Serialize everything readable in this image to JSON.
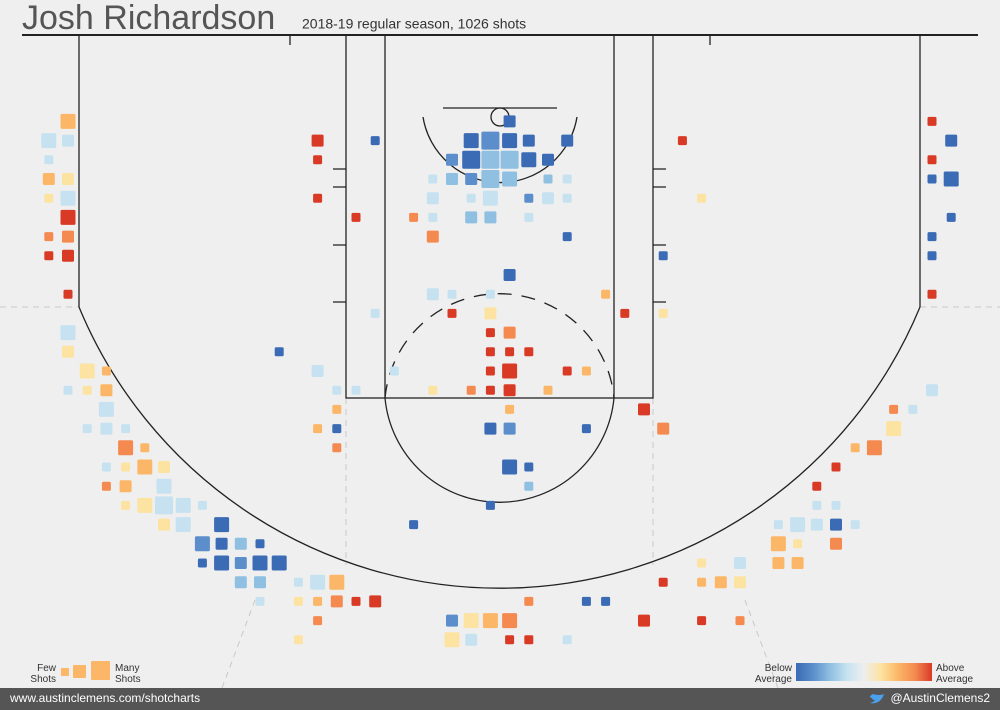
{
  "chart_data": {
    "type": "shot-chart",
    "title": "Josh Richardson",
    "subtitle": "2018-19 regular season, 1026 shots",
    "colors": [
      "#3a6bb4",
      "#5b8ecb",
      "#8fbfe1",
      "#c6e2f0",
      "#eeeeee",
      "#fde3a1",
      "#fbb767",
      "#f48a50",
      "#d93a26"
    ],
    "legend": {
      "few": "Few Shots",
      "many": "Many Shots",
      "below": "Below Average",
      "above": "Above Average"
    },
    "footer": {
      "site": "www.austinclemens.com/shotcharts",
      "handle": "@AustinClemens2"
    },
    "shots": [
      {
        "x": -22.5,
        "y": 4.5,
        "n": 3,
        "v": 2
      },
      {
        "x": -23.5,
        "y": 5.5,
        "n": 3,
        "v": -1
      },
      {
        "x": -22.5,
        "y": 5.5,
        "n": 2,
        "v": -1
      },
      {
        "x": -23.5,
        "y": 6.5,
        "n": 1,
        "v": -1
      },
      {
        "x": -23.5,
        "y": 7.5,
        "n": 2,
        "v": 2
      },
      {
        "x": -22.5,
        "y": 7.5,
        "n": 2,
        "v": 1
      },
      {
        "x": -23.5,
        "y": 8.5,
        "n": 1,
        "v": 1
      },
      {
        "x": -22.5,
        "y": 8.5,
        "n": 3,
        "v": -1
      },
      {
        "x": -22.5,
        "y": 9.5,
        "n": 3,
        "v": 4
      },
      {
        "x": -23.5,
        "y": 10.5,
        "n": 1,
        "v": 3
      },
      {
        "x": -22.5,
        "y": 10.5,
        "n": 2,
        "v": 3
      },
      {
        "x": -23.5,
        "y": 11.5,
        "n": 1,
        "v": 4
      },
      {
        "x": -22.5,
        "y": 11.5,
        "n": 2,
        "v": 4
      },
      {
        "x": -22.5,
        "y": 13.5,
        "n": 1,
        "v": 4
      },
      {
        "x": -9.5,
        "y": 5.5,
        "n": 2,
        "v": 4
      },
      {
        "x": -6.5,
        "y": 5.5,
        "n": 1,
        "v": -4
      },
      {
        "x": -9.5,
        "y": 6.5,
        "n": 1,
        "v": 4
      },
      {
        "x": -9.5,
        "y": 8.5,
        "n": 1,
        "v": 4
      },
      {
        "x": -7.5,
        "y": 9.5,
        "n": 1,
        "v": 4
      },
      {
        "x": -4.5,
        "y": 9.5,
        "n": 1,
        "v": 3
      },
      {
        "x": -3.5,
        "y": 9.5,
        "n": 1,
        "v": -1
      },
      {
        "x": -3.5,
        "y": 10.5,
        "n": 2,
        "v": 3
      },
      {
        "x": 0.5,
        "y": 4.5,
        "n": 2,
        "v": -4
      },
      {
        "x": -1.5,
        "y": 5.5,
        "n": 3,
        "v": -4
      },
      {
        "x": -0.5,
        "y": 5.5,
        "n": 4,
        "v": -3
      },
      {
        "x": 0.5,
        "y": 5.5,
        "n": 3,
        "v": -4
      },
      {
        "x": 1.5,
        "y": 5.5,
        "n": 2,
        "v": -4
      },
      {
        "x": 3.5,
        "y": 5.5,
        "n": 2,
        "v": -4
      },
      {
        "x": -2.5,
        "y": 6.5,
        "n": 2,
        "v": -3
      },
      {
        "x": -1.5,
        "y": 6.5,
        "n": 4,
        "v": -4
      },
      {
        "x": -0.5,
        "y": 6.5,
        "n": 4,
        "v": -2
      },
      {
        "x": 0.5,
        "y": 6.5,
        "n": 4,
        "v": -2
      },
      {
        "x": 1.5,
        "y": 6.5,
        "n": 3,
        "v": -4
      },
      {
        "x": 2.5,
        "y": 6.5,
        "n": 2,
        "v": -4
      },
      {
        "x": -3.5,
        "y": 7.5,
        "n": 1,
        "v": -1
      },
      {
        "x": -2.5,
        "y": 7.5,
        "n": 2,
        "v": -2
      },
      {
        "x": -1.5,
        "y": 7.5,
        "n": 2,
        "v": -3
      },
      {
        "x": -0.5,
        "y": 7.5,
        "n": 4,
        "v": -2
      },
      {
        "x": 0.5,
        "y": 7.5,
        "n": 3,
        "v": -2
      },
      {
        "x": 2.5,
        "y": 7.5,
        "n": 1,
        "v": -2
      },
      {
        "x": 3.5,
        "y": 7.5,
        "n": 1,
        "v": -1
      },
      {
        "x": -3.5,
        "y": 8.5,
        "n": 2,
        "v": -1
      },
      {
        "x": -1.5,
        "y": 8.5,
        "n": 1,
        "v": -1
      },
      {
        "x": -0.5,
        "y": 8.5,
        "n": 3,
        "v": -1
      },
      {
        "x": 1.5,
        "y": 8.5,
        "n": 1,
        "v": -3
      },
      {
        "x": 2.5,
        "y": 8.5,
        "n": 2,
        "v": -1
      },
      {
        "x": 3.5,
        "y": 8.5,
        "n": 1,
        "v": -1
      },
      {
        "x": -1.5,
        "y": 9.5,
        "n": 2,
        "v": -2
      },
      {
        "x": -0.5,
        "y": 9.5,
        "n": 2,
        "v": -2
      },
      {
        "x": 1.5,
        "y": 9.5,
        "n": 1,
        "v": -1
      },
      {
        "x": 3.5,
        "y": 10.5,
        "n": 1,
        "v": -4
      },
      {
        "x": 9.5,
        "y": 5.5,
        "n": 1,
        "v": 4
      },
      {
        "x": 10.5,
        "y": 8.5,
        "n": 1,
        "v": 1
      },
      {
        "x": 8.5,
        "y": 11.5,
        "n": 1,
        "v": -4
      },
      {
        "x": 22.5,
        "y": 4.5,
        "n": 1,
        "v": 4
      },
      {
        "x": 23.5,
        "y": 5.5,
        "n": 2,
        "v": -4
      },
      {
        "x": 22.5,
        "y": 6.5,
        "n": 1,
        "v": 4
      },
      {
        "x": 22.5,
        "y": 7.5,
        "n": 1,
        "v": -4
      },
      {
        "x": 23.5,
        "y": 7.5,
        "n": 3,
        "v": -4
      },
      {
        "x": 23.5,
        "y": 9.5,
        "n": 1,
        "v": -4
      },
      {
        "x": 22.5,
        "y": 10.5,
        "n": 1,
        "v": -4
      },
      {
        "x": 22.5,
        "y": 11.5,
        "n": 1,
        "v": -4
      },
      {
        "x": 22.5,
        "y": 13.5,
        "n": 1,
        "v": 4
      },
      {
        "x": 0.5,
        "y": 12.5,
        "n": 2,
        "v": -4
      },
      {
        "x": -3.5,
        "y": 13.5,
        "n": 2,
        "v": -1
      },
      {
        "x": -2.5,
        "y": 13.5,
        "n": 1,
        "v": -1
      },
      {
        "x": -0.5,
        "y": 13.5,
        "n": 1,
        "v": -1
      },
      {
        "x": 5.5,
        "y": 13.5,
        "n": 1,
        "v": 2
      },
      {
        "x": -6.5,
        "y": 14.5,
        "n": 1,
        "v": -1
      },
      {
        "x": -2.5,
        "y": 14.5,
        "n": 1,
        "v": 4
      },
      {
        "x": -0.5,
        "y": 14.5,
        "n": 2,
        "v": 1
      },
      {
        "x": 6.5,
        "y": 14.5,
        "n": 1,
        "v": 4
      },
      {
        "x": 8.5,
        "y": 14.5,
        "n": 1,
        "v": 1
      },
      {
        "x": -0.5,
        "y": 15.5,
        "n": 1,
        "v": 4
      },
      {
        "x": 0.5,
        "y": 15.5,
        "n": 2,
        "v": 3
      },
      {
        "x": -0.5,
        "y": 16.5,
        "n": 1,
        "v": 4
      },
      {
        "x": 0.5,
        "y": 16.5,
        "n": 1,
        "v": 4
      },
      {
        "x": 1.5,
        "y": 16.5,
        "n": 1,
        "v": 4
      },
      {
        "x": -11.5,
        "y": 16.5,
        "n": 1,
        "v": -4
      },
      {
        "x": -9.5,
        "y": 17.5,
        "n": 2,
        "v": -1
      },
      {
        "x": -5.5,
        "y": 17.5,
        "n": 1,
        "v": -1
      },
      {
        "x": -0.5,
        "y": 17.5,
        "n": 1,
        "v": 4
      },
      {
        "x": 0.5,
        "y": 17.5,
        "n": 3,
        "v": 4
      },
      {
        "x": 3.5,
        "y": 17.5,
        "n": 1,
        "v": 4
      },
      {
        "x": 4.5,
        "y": 17.5,
        "n": 1,
        "v": 2
      },
      {
        "x": -8.5,
        "y": 18.5,
        "n": 1,
        "v": -1
      },
      {
        "x": -7.5,
        "y": 18.5,
        "n": 1,
        "v": -1
      },
      {
        "x": -3.5,
        "y": 18.5,
        "n": 1,
        "v": 1
      },
      {
        "x": -1.5,
        "y": 18.5,
        "n": 1,
        "v": 3
      },
      {
        "x": -0.5,
        "y": 18.5,
        "n": 1,
        "v": 4
      },
      {
        "x": 0.5,
        "y": 18.5,
        "n": 2,
        "v": 4
      },
      {
        "x": 2.5,
        "y": 18.5,
        "n": 1,
        "v": 2
      },
      {
        "x": -8.5,
        "y": 19.5,
        "n": 1,
        "v": 2
      },
      {
        "x": 0.5,
        "y": 19.5,
        "n": 1,
        "v": 2
      },
      {
        "x": 7.5,
        "y": 19.5,
        "n": 2,
        "v": 4
      },
      {
        "x": -9.5,
        "y": 20.5,
        "n": 1,
        "v": 2
      },
      {
        "x": -8.5,
        "y": 20.5,
        "n": 1,
        "v": -4
      },
      {
        "x": -0.5,
        "y": 20.5,
        "n": 2,
        "v": -4
      },
      {
        "x": 0.5,
        "y": 20.5,
        "n": 2,
        "v": -3
      },
      {
        "x": 4.5,
        "y": 20.5,
        "n": 1,
        "v": -4
      },
      {
        "x": 8.5,
        "y": 20.5,
        "n": 2,
        "v": 3
      },
      {
        "x": -8.5,
        "y": 21.5,
        "n": 1,
        "v": 3
      },
      {
        "x": 0.5,
        "y": 22.5,
        "n": 3,
        "v": -4
      },
      {
        "x": 1.5,
        "y": 22.5,
        "n": 1,
        "v": -4
      },
      {
        "x": 1.5,
        "y": 23.5,
        "n": 1,
        "v": -2
      },
      {
        "x": -0.5,
        "y": 24.5,
        "n": 1,
        "v": -4
      },
      {
        "x": -4.5,
        "y": 25.5,
        "n": 1,
        "v": -4
      },
      {
        "x": -22.5,
        "y": 15.5,
        "n": 3,
        "v": -1
      },
      {
        "x": -22.5,
        "y": 16.5,
        "n": 2,
        "v": 1
      },
      {
        "x": -21.5,
        "y": 17.5,
        "n": 3,
        "v": 1
      },
      {
        "x": -20.5,
        "y": 17.5,
        "n": 1,
        "v": 2
      },
      {
        "x": -22.5,
        "y": 18.5,
        "n": 1,
        "v": -1
      },
      {
        "x": -21.5,
        "y": 18.5,
        "n": 1,
        "v": 1
      },
      {
        "x": -20.5,
        "y": 18.5,
        "n": 2,
        "v": 2
      },
      {
        "x": -20.5,
        "y": 19.5,
        "n": 3,
        "v": -1
      },
      {
        "x": -21.5,
        "y": 20.5,
        "n": 1,
        "v": -1
      },
      {
        "x": -20.5,
        "y": 20.5,
        "n": 2,
        "v": -1
      },
      {
        "x": -19.5,
        "y": 20.5,
        "n": 1,
        "v": -1
      },
      {
        "x": -19.5,
        "y": 21.5,
        "n": 3,
        "v": 3
      },
      {
        "x": -18.5,
        "y": 21.5,
        "n": 1,
        "v": 2
      },
      {
        "x": -20.5,
        "y": 22.5,
        "n": 1,
        "v": -1
      },
      {
        "x": -19.5,
        "y": 22.5,
        "n": 1,
        "v": 1
      },
      {
        "x": -18.5,
        "y": 22.5,
        "n": 3,
        "v": 2
      },
      {
        "x": -17.5,
        "y": 22.5,
        "n": 2,
        "v": 1
      },
      {
        "x": -20.5,
        "y": 23.5,
        "n": 1,
        "v": 3
      },
      {
        "x": -19.5,
        "y": 23.5,
        "n": 2,
        "v": 2
      },
      {
        "x": -17.5,
        "y": 23.5,
        "n": 3,
        "v": -1
      },
      {
        "x": -19.5,
        "y": 24.5,
        "n": 1,
        "v": 1
      },
      {
        "x": -18.5,
        "y": 24.5,
        "n": 3,
        "v": 1
      },
      {
        "x": -17.5,
        "y": 24.5,
        "n": 4,
        "v": -1
      },
      {
        "x": -16.5,
        "y": 24.5,
        "n": 3,
        "v": -1
      },
      {
        "x": -15.5,
        "y": 24.5,
        "n": 1,
        "v": -1
      },
      {
        "x": -17.5,
        "y": 25.5,
        "n": 2,
        "v": 1
      },
      {
        "x": -16.5,
        "y": 25.5,
        "n": 3,
        "v": -1
      },
      {
        "x": -14.5,
        "y": 25.5,
        "n": 3,
        "v": -4
      },
      {
        "x": -15.5,
        "y": 26.5,
        "n": 3,
        "v": -3
      },
      {
        "x": -14.5,
        "y": 26.5,
        "n": 2,
        "v": -4
      },
      {
        "x": -13.5,
        "y": 26.5,
        "n": 2,
        "v": -2
      },
      {
        "x": -12.5,
        "y": 26.5,
        "n": 1,
        "v": -4
      },
      {
        "x": -15.5,
        "y": 27.5,
        "n": 1,
        "v": -4
      },
      {
        "x": -14.5,
        "y": 27.5,
        "n": 3,
        "v": -4
      },
      {
        "x": -13.5,
        "y": 27.5,
        "n": 2,
        "v": -3
      },
      {
        "x": -12.5,
        "y": 27.5,
        "n": 3,
        "v": -4
      },
      {
        "x": -11.5,
        "y": 27.5,
        "n": 3,
        "v": -4
      },
      {
        "x": -13.5,
        "y": 28.5,
        "n": 2,
        "v": -2
      },
      {
        "x": -12.5,
        "y": 28.5,
        "n": 2,
        "v": -2
      },
      {
        "x": -10.5,
        "y": 28.5,
        "n": 1,
        "v": -1
      },
      {
        "x": -9.5,
        "y": 28.5,
        "n": 3,
        "v": -1
      },
      {
        "x": -8.5,
        "y": 28.5,
        "n": 3,
        "v": 2
      },
      {
        "x": -12.5,
        "y": 29.5,
        "n": 1,
        "v": -1
      },
      {
        "x": -10.5,
        "y": 29.5,
        "n": 1,
        "v": 1
      },
      {
        "x": -9.5,
        "y": 29.5,
        "n": 1,
        "v": 2
      },
      {
        "x": -8.5,
        "y": 29.5,
        "n": 2,
        "v": 3
      },
      {
        "x": -7.5,
        "y": 29.5,
        "n": 1,
        "v": 4
      },
      {
        "x": -6.5,
        "y": 29.5,
        "n": 2,
        "v": 4
      },
      {
        "x": -9.5,
        "y": 30.5,
        "n": 1,
        "v": 3
      },
      {
        "x": -10.5,
        "y": 31.5,
        "n": 1,
        "v": 1
      },
      {
        "x": 1.5,
        "y": 29.5,
        "n": 1,
        "v": 3
      },
      {
        "x": 4.5,
        "y": 29.5,
        "n": 1,
        "v": -4
      },
      {
        "x": 5.5,
        "y": 29.5,
        "n": 1,
        "v": -4
      },
      {
        "x": -2.5,
        "y": 30.5,
        "n": 2,
        "v": -3
      },
      {
        "x": -1.5,
        "y": 30.5,
        "n": 3,
        "v": 1
      },
      {
        "x": -0.5,
        "y": 30.5,
        "n": 3,
        "v": 2
      },
      {
        "x": 0.5,
        "y": 30.5,
        "n": 3,
        "v": 3
      },
      {
        "x": -2.5,
        "y": 31.5,
        "n": 3,
        "v": 1
      },
      {
        "x": -1.5,
        "y": 31.5,
        "n": 2,
        "v": -1
      },
      {
        "x": 0.5,
        "y": 31.5,
        "n": 1,
        "v": 4
      },
      {
        "x": 1.5,
        "y": 31.5,
        "n": 1,
        "v": 4
      },
      {
        "x": 3.5,
        "y": 31.5,
        "n": 1,
        "v": -1
      },
      {
        "x": 7.5,
        "y": 30.5,
        "n": 2,
        "v": 4
      },
      {
        "x": 10.5,
        "y": 30.5,
        "n": 1,
        "v": 4
      },
      {
        "x": 12.5,
        "y": 30.5,
        "n": 1,
        "v": 3
      },
      {
        "x": 22.5,
        "y": 18.5,
        "n": 2,
        "v": -1
      },
      {
        "x": 20.5,
        "y": 19.5,
        "n": 1,
        "v": 3
      },
      {
        "x": 21.5,
        "y": 19.5,
        "n": 1,
        "v": -1
      },
      {
        "x": 20.5,
        "y": 20.5,
        "n": 3,
        "v": 1
      },
      {
        "x": 19.5,
        "y": 21.5,
        "n": 3,
        "v": 3
      },
      {
        "x": 18.5,
        "y": 21.5,
        "n": 1,
        "v": 2
      },
      {
        "x": 17.5,
        "y": 22.5,
        "n": 1,
        "v": 4
      },
      {
        "x": 16.5,
        "y": 23.5,
        "n": 1,
        "v": 4
      },
      {
        "x": 16.5,
        "y": 24.5,
        "n": 1,
        "v": -1
      },
      {
        "x": 17.5,
        "y": 24.5,
        "n": 1,
        "v": -1
      },
      {
        "x": 14.5,
        "y": 25.5,
        "n": 1,
        "v": -1
      },
      {
        "x": 15.5,
        "y": 25.5,
        "n": 3,
        "v": -1
      },
      {
        "x": 16.5,
        "y": 25.5,
        "n": 2,
        "v": -1
      },
      {
        "x": 17.5,
        "y": 25.5,
        "n": 2,
        "v": -4
      },
      {
        "x": 18.5,
        "y": 25.5,
        "n": 1,
        "v": -1
      },
      {
        "x": 14.5,
        "y": 26.5,
        "n": 3,
        "v": 2
      },
      {
        "x": 15.5,
        "y": 26.5,
        "n": 1,
        "v": 1
      },
      {
        "x": 17.5,
        "y": 26.5,
        "n": 2,
        "v": 3
      },
      {
        "x": 12.5,
        "y": 27.5,
        "n": 2,
        "v": -1
      },
      {
        "x": 14.5,
        "y": 27.5,
        "n": 2,
        "v": 2
      },
      {
        "x": 15.5,
        "y": 27.5,
        "n": 2,
        "v": 2
      },
      {
        "x": 10.5,
        "y": 27.5,
        "n": 1,
        "v": 1
      },
      {
        "x": 8.5,
        "y": 28.5,
        "n": 1,
        "v": 4
      },
      {
        "x": 10.5,
        "y": 28.5,
        "n": 1,
        "v": 2
      },
      {
        "x": 11.5,
        "y": 28.5,
        "n": 2,
        "v": 2
      },
      {
        "x": 12.5,
        "y": 28.5,
        "n": 2,
        "v": 1
      }
    ]
  }
}
